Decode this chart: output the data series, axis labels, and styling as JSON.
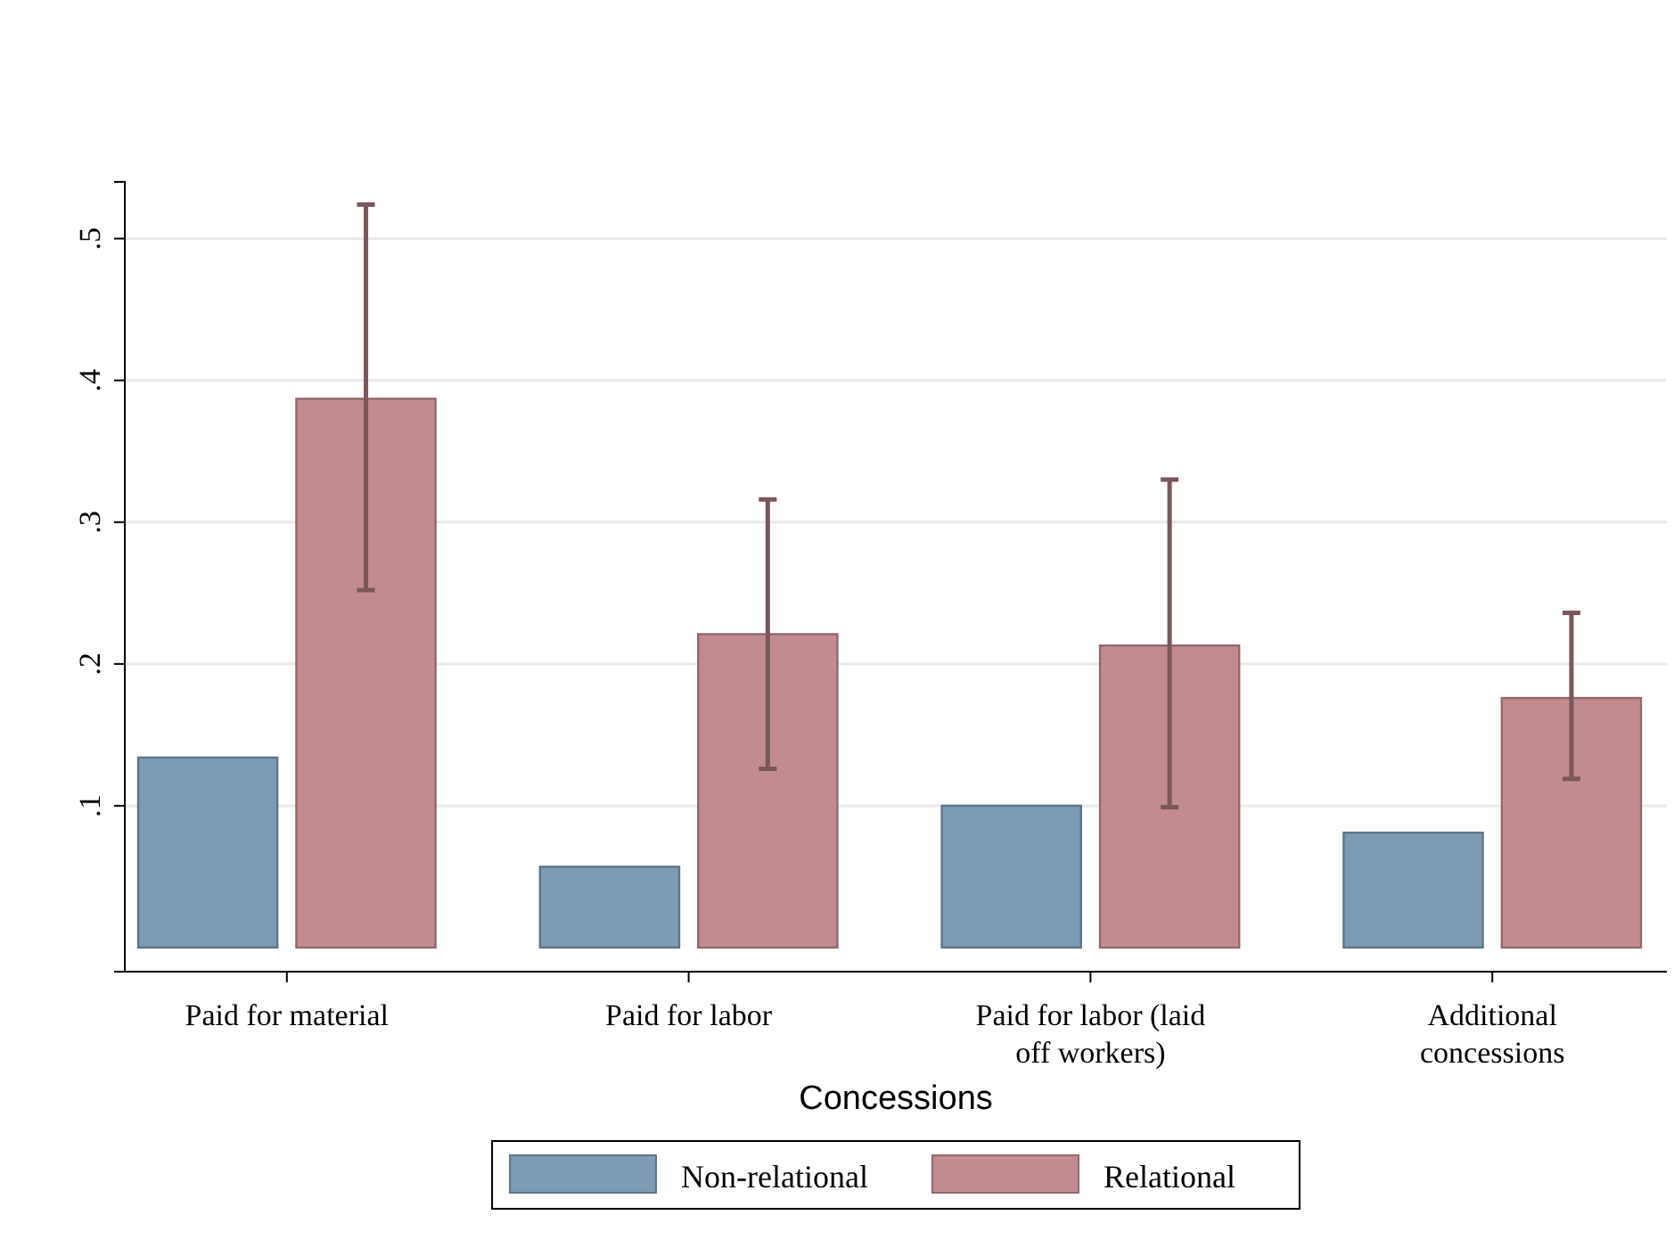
{
  "chart_data": {
    "type": "bar",
    "xlabel": "Concessions",
    "categories": [
      "Paid for material",
      "Paid for labor",
      "Paid for labor (laid off workers)",
      "Additional concessions"
    ],
    "series": [
      {
        "name": "Non-relational",
        "color": "#7d9bb3",
        "values": [
          0.134,
          0.057,
          0.1,
          0.081
        ]
      },
      {
        "name": "Relational",
        "color": "#c28b8f",
        "values": [
          0.387,
          0.221,
          0.213,
          0.176
        ],
        "errors": [
          [
            0.252,
            0.524
          ],
          [
            0.126,
            0.316
          ],
          [
            0.099,
            0.33
          ],
          [
            0.119,
            0.236
          ]
        ]
      }
    ],
    "ylim": [
      -0.017,
      0.54
    ],
    "yticks": [
      {
        "value": 0.1,
        "label": ".1"
      },
      {
        "value": 0.2,
        "label": ".2"
      },
      {
        "value": 0.3,
        "label": ".3"
      },
      {
        "value": 0.4,
        "label": ".4"
      },
      {
        "value": 0.5,
        "label": ".5"
      }
    ],
    "grid": "y",
    "legend": "bottom"
  }
}
